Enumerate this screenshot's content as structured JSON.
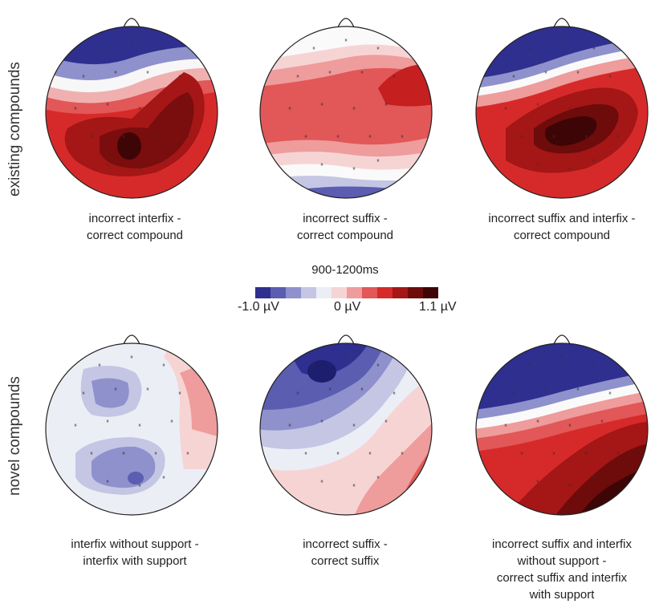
{
  "rows": {
    "top_label": "existing compounds",
    "bottom_label": "novel compounds"
  },
  "captions": {
    "t1": [
      "incorrect interfix -",
      "correct compound"
    ],
    "t2": [
      "incorrect suffix -",
      "correct compound"
    ],
    "t3": [
      "incorrect suffix and interfix -",
      "correct compound"
    ],
    "b1": [
      "interfix without support -",
      "interfix with support"
    ],
    "b2": [
      "incorrect suffix -",
      "correct suffix"
    ],
    "b3": [
      "incorrect suffix and interfix",
      "without support -",
      "correct suffix and interfix",
      "with support"
    ]
  },
  "scale": {
    "title": "900-1200ms",
    "min_label": "-1.0 µV",
    "zero_label": "0 µV",
    "max_label": "1.1 µV",
    "colors": [
      "#2e2f8f",
      "#5a5db0",
      "#8e91cc",
      "#c4c6e4",
      "#eceef6",
      "#f7d4d4",
      "#ee9c9c",
      "#e25757",
      "#d62a2a",
      "#a51616",
      "#6e0b0b",
      "#3d0505"
    ]
  },
  "icons": {
    "nose": "nose-icon",
    "electrode": "electrode-marker"
  }
}
